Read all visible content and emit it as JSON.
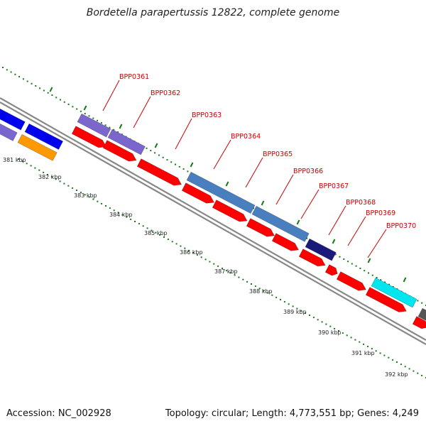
{
  "title": "Bordetella parapertussis 12822, complete genome",
  "footer": {
    "accession": "Accession: NC_002928",
    "summary": "Topology: circular; Length: 4,773,551 bp; Genes: 4,249"
  },
  "colors": {
    "cds": "#ff0000",
    "label": "#cc0000",
    "ticks": "#1a7a1a",
    "backbone": "#888888",
    "feature_purple": "#7a66cc",
    "feature_blue": "#0000ee",
    "feature_orange": "#ff9900",
    "feature_steel": "#4a7fbf",
    "feature_navy": "#1a1a7a",
    "feature_cyan": "#00e5ee",
    "feature_gray": "#555555"
  },
  "gene_labels": [
    "BPP0361",
    "BPP0362",
    "BPP0363",
    "BPP0364",
    "BPP0365",
    "BPP0366",
    "BPP0367",
    "BPP0368",
    "BPP0369",
    "BPP0370"
  ],
  "scale_labels": [
    "381 kbp",
    "382 kbp",
    "383 kbp",
    "384 kbp",
    "385 kbp",
    "386 kbp",
    "387 kbp",
    "388 kbp",
    "389 kbp",
    "390 kbp",
    "391 kbp",
    "392 kbp"
  ]
}
